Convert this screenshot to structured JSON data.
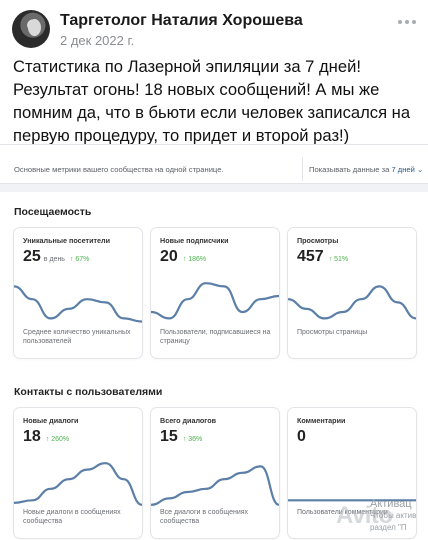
{
  "post": {
    "author": "Таргетолог Наталия Хорошева",
    "date": "2 дек 2022 г.",
    "text": "Статистика по Лазерной эпиляции за 7 дней! Результат огонь! 18 новых сообщений! А мы же помним да, что в бьюти если человек записался на первую процедуру, то придет и второй раз!)"
  },
  "stats": {
    "topbar_left": "Основные метрики вашего сообщества на одной странице.",
    "topbar_right_prefix": "Показывать данные за",
    "topbar_right_period": "7 дней",
    "sections": [
      {
        "title": "Посещаемость",
        "cards": [
          {
            "label": "Уникальные посетители",
            "value": "25",
            "unit": "в день",
            "trend": "↑ 67%",
            "desc": "Среднее количество уникальных пользователей",
            "series": [
              0.35,
              0.55,
              0.85,
              0.7,
              0.55,
              0.6,
              0.85,
              0.9
            ]
          },
          {
            "label": "Новые подписчики",
            "value": "20",
            "unit": "",
            "trend": "↑ 186%",
            "desc": "Пользователи, подписавшиеся на страницу",
            "series": [
              0.75,
              0.85,
              0.55,
              0.3,
              0.35,
              0.75,
              0.55,
              0.5
            ]
          },
          {
            "label": "Просмотры",
            "value": "457",
            "unit": "",
            "trend": "↑ 51%",
            "desc": "Просмотры страницы",
            "series": [
              0.55,
              0.7,
              0.85,
              0.75,
              0.55,
              0.35,
              0.6,
              0.85
            ]
          }
        ]
      },
      {
        "title": "Контакты с пользователями",
        "cards": [
          {
            "label": "Новые диалоги",
            "value": "18",
            "unit": "",
            "trend": "↑ 260%",
            "desc": "Новые диалоги в сообщениях сообщества",
            "series": [
              0.92,
              0.88,
              0.7,
              0.55,
              0.4,
              0.3,
              0.55,
              0.95
            ]
          },
          {
            "label": "Всего диалогов",
            "value": "15",
            "unit": "",
            "trend": "↑ 36%",
            "desc": "Все диалоги в сообщениях сообщества",
            "series": [
              0.95,
              0.85,
              0.75,
              0.7,
              0.55,
              0.45,
              0.35,
              0.95
            ]
          },
          {
            "label": "Комментарии",
            "value": "0",
            "unit": "",
            "trend": "",
            "desc": "Пользователи комментарии",
            "series": [
              0.88,
              0.88,
              0.88,
              0.88,
              0.88,
              0.88,
              0.88,
              0.88
            ]
          }
        ]
      }
    ]
  },
  "watermark": {
    "brand": "Avito",
    "line1": "Активац",
    "line2": "Чтобы актив",
    "line3": "раздел \"П"
  },
  "colors": {
    "chart_line": "#5b7fa7",
    "trend_up": "#4bb34b",
    "link": "#2a5885"
  }
}
